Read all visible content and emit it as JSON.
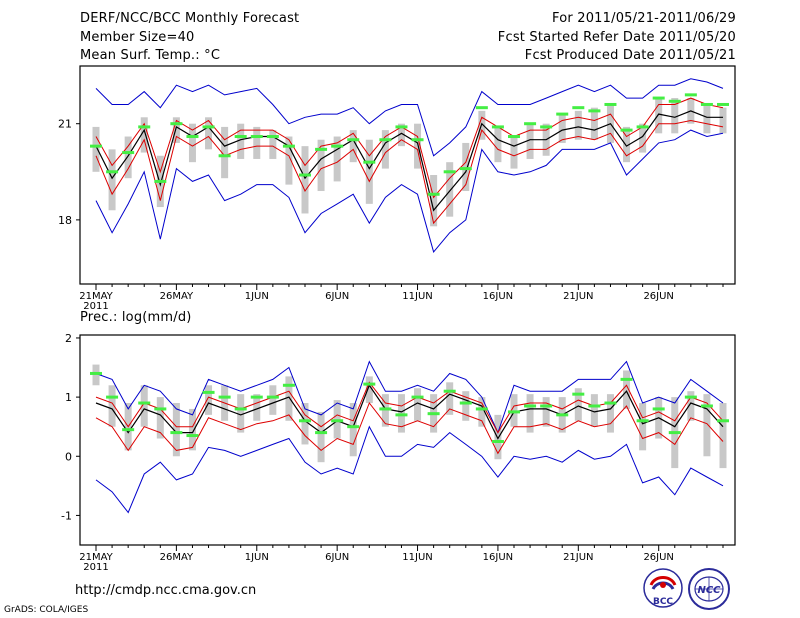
{
  "header": {
    "title": "DERF/NCC/BCC Monthly Forecast",
    "member_size": "Member Size=40",
    "period": "For 2011/05/21-2011/06/29",
    "fcst_started": "Fcst Started Refer Date 2011/05/20",
    "fcst_produced": "Fcst Produced Date 2011/05/21"
  },
  "footer": {
    "url": "http://cmdp.ncc.cma.gov.cn",
    "credit": "GrADS: COLA/IGES",
    "logo_bcc_text": "BCC",
    "logo_ncc_text": "NCC"
  },
  "colors": {
    "ensemble_mean": "#000000",
    "spread_lines": "#dd0000",
    "extreme_lines": "#0000cc",
    "box": "#c8c8c8",
    "median_marker": "#44ee44"
  },
  "chart_data": [
    {
      "type": "line",
      "title": "Mean Surf. Temp.: °C",
      "x_tick_labels": [
        "21MAY",
        "26MAY",
        "1JUN",
        "6JUN",
        "11JUN",
        "16JUN",
        "21JUN",
        "26JUN"
      ],
      "year_label": "2011",
      "ylim": [
        16,
        22.8
      ],
      "y_ticks": [
        18,
        21
      ],
      "days": 40,
      "series": [
        {
          "name": "mean",
          "values": [
            20.3,
            19.3,
            20.0,
            20.8,
            19.1,
            20.9,
            20.6,
            20.9,
            20.3,
            20.5,
            20.6,
            20.6,
            20.3,
            19.3,
            19.9,
            20.2,
            20.5,
            19.6,
            20.4,
            20.7,
            20.4,
            18.3,
            18.9,
            19.5,
            21.0,
            20.5,
            20.3,
            20.5,
            20.5,
            20.8,
            20.9,
            20.8,
            21.0,
            20.3,
            20.6,
            21.3,
            21.2,
            21.4,
            21.2,
            21.2
          ]
        },
        {
          "name": "upper",
          "values": [
            20.6,
            19.7,
            20.3,
            21.0,
            19.5,
            21.1,
            20.8,
            21.1,
            20.5,
            20.8,
            20.8,
            20.8,
            20.5,
            19.7,
            20.3,
            20.4,
            20.7,
            20.0,
            20.6,
            20.9,
            20.6,
            18.7,
            19.3,
            19.8,
            21.2,
            20.9,
            20.6,
            20.8,
            20.8,
            21.1,
            21.2,
            21.1,
            21.3,
            20.6,
            20.9,
            21.6,
            21.6,
            21.8,
            21.6,
            21.5
          ]
        },
        {
          "name": "lower",
          "values": [
            20.0,
            18.8,
            19.6,
            20.5,
            18.6,
            20.6,
            20.3,
            20.6,
            20.0,
            20.2,
            20.3,
            20.3,
            20.0,
            18.9,
            19.6,
            19.8,
            20.2,
            19.2,
            20.1,
            20.5,
            20.2,
            17.9,
            18.5,
            19.1,
            20.8,
            20.2,
            20.0,
            20.2,
            20.2,
            20.5,
            20.6,
            20.5,
            20.7,
            20.0,
            20.3,
            21.0,
            21.0,
            21.1,
            21.0,
            20.9
          ]
        },
        {
          "name": "max",
          "values": [
            22.1,
            21.6,
            21.6,
            22.0,
            21.5,
            22.2,
            22.0,
            22.2,
            21.9,
            22.0,
            22.1,
            21.6,
            21.0,
            21.2,
            21.3,
            21.3,
            21.5,
            21.0,
            21.4,
            21.6,
            21.6,
            20.0,
            20.4,
            20.9,
            22.0,
            21.6,
            21.6,
            21.6,
            21.8,
            22.0,
            22.2,
            22.0,
            22.2,
            21.8,
            21.8,
            22.2,
            22.2,
            22.4,
            22.3,
            22.1
          ]
        },
        {
          "name": "min",
          "values": [
            18.6,
            17.6,
            18.5,
            19.5,
            17.4,
            19.6,
            19.2,
            19.4,
            18.6,
            18.8,
            19.1,
            19.1,
            18.7,
            17.6,
            18.2,
            18.5,
            18.8,
            17.9,
            18.7,
            19.1,
            18.8,
            17.0,
            17.6,
            18.0,
            20.2,
            19.5,
            19.4,
            19.5,
            19.7,
            20.2,
            20.2,
            20.2,
            20.4,
            19.4,
            19.9,
            20.4,
            20.5,
            20.8,
            20.6,
            20.7
          ]
        },
        {
          "name": "box_top",
          "values": [
            20.9,
            20.2,
            20.6,
            21.2,
            20.0,
            21.2,
            21.0,
            21.2,
            20.9,
            21.0,
            20.9,
            20.8,
            20.6,
            20.3,
            20.5,
            20.6,
            20.8,
            20.5,
            20.8,
            21.0,
            21.0,
            19.4,
            19.8,
            20.4,
            21.4,
            20.9,
            20.6,
            21.0,
            21.0,
            21.3,
            21.4,
            21.5,
            21.6,
            20.9,
            21.0,
            21.8,
            21.8,
            21.8,
            21.6,
            21.5
          ]
        },
        {
          "name": "box_bottom",
          "values": [
            19.5,
            18.3,
            19.3,
            20.1,
            18.4,
            20.4,
            19.8,
            20.2,
            19.3,
            19.9,
            19.9,
            19.9,
            19.1,
            18.2,
            18.9,
            19.2,
            19.8,
            18.5,
            19.6,
            20.3,
            19.6,
            17.8,
            18.1,
            18.9,
            20.5,
            19.8,
            19.6,
            19.9,
            20.0,
            20.4,
            20.5,
            20.5,
            20.4,
            19.8,
            20.1,
            20.7,
            20.7,
            21.0,
            20.7,
            20.7
          ]
        },
        {
          "name": "median",
          "values": [
            20.3,
            19.5,
            20.1,
            20.9,
            19.2,
            21.0,
            20.6,
            20.9,
            20.0,
            20.6,
            20.6,
            20.6,
            20.3,
            19.4,
            20.2,
            20.3,
            20.5,
            19.8,
            20.5,
            20.9,
            20.5,
            18.8,
            19.5,
            19.6,
            21.5,
            20.9,
            20.6,
            21.0,
            20.9,
            21.3,
            21.5,
            21.4,
            21.6,
            20.8,
            20.9,
            21.8,
            21.7,
            21.9,
            21.6,
            21.6
          ]
        }
      ]
    },
    {
      "type": "line",
      "title": "Prec.: log(mm/d)",
      "x_tick_labels": [
        "21MAY",
        "26MAY",
        "1JUN",
        "6JUN",
        "11JUN",
        "16JUN",
        "21JUN",
        "26JUN"
      ],
      "year_label": "2011",
      "ylim": [
        -1.5,
        2.05
      ],
      "y_ticks": [
        -1,
        0,
        1,
        2
      ],
      "days": 40,
      "series": [
        {
          "name": "mean",
          "values": [
            0.9,
            0.8,
            0.4,
            0.8,
            0.7,
            0.4,
            0.4,
            0.9,
            0.8,
            0.7,
            0.8,
            0.9,
            1.0,
            0.6,
            0.4,
            0.6,
            0.5,
            1.2,
            0.8,
            0.75,
            0.9,
            0.8,
            1.05,
            0.95,
            0.85,
            0.3,
            0.75,
            0.8,
            0.8,
            0.7,
            0.85,
            0.75,
            0.8,
            1.1,
            0.55,
            0.65,
            0.5,
            0.9,
            0.8,
            0.5
          ]
        },
        {
          "name": "upper",
          "values": [
            1.0,
            0.9,
            0.5,
            0.9,
            0.8,
            0.5,
            0.5,
            1.0,
            0.9,
            0.8,
            0.9,
            1.0,
            1.1,
            0.7,
            0.5,
            0.7,
            0.6,
            1.25,
            0.9,
            0.85,
            1.0,
            0.9,
            1.1,
            1.0,
            0.9,
            0.4,
            0.85,
            0.9,
            0.9,
            0.8,
            0.95,
            0.85,
            0.9,
            1.2,
            0.65,
            0.75,
            0.6,
            1.0,
            0.9,
            0.6
          ]
        },
        {
          "name": "lower",
          "values": [
            0.65,
            0.5,
            0.1,
            0.5,
            0.4,
            0.1,
            0.15,
            0.65,
            0.55,
            0.45,
            0.55,
            0.6,
            0.7,
            0.35,
            0.1,
            0.3,
            0.2,
            0.9,
            0.55,
            0.5,
            0.6,
            0.5,
            0.8,
            0.7,
            0.6,
            0.05,
            0.5,
            0.5,
            0.55,
            0.45,
            0.6,
            0.5,
            0.55,
            0.85,
            0.3,
            0.4,
            0.2,
            0.65,
            0.55,
            0.25
          ]
        },
        {
          "name": "max",
          "values": [
            1.4,
            1.3,
            0.8,
            1.2,
            1.1,
            0.8,
            0.7,
            1.3,
            1.2,
            1.1,
            1.2,
            1.3,
            1.5,
            0.8,
            0.7,
            0.9,
            0.8,
            1.6,
            1.1,
            1.1,
            1.2,
            1.1,
            1.4,
            1.3,
            1.0,
            0.4,
            1.2,
            1.1,
            1.1,
            1.1,
            1.3,
            1.3,
            1.3,
            1.6,
            0.9,
            1.0,
            0.9,
            1.3,
            1.1,
            0.9
          ]
        },
        {
          "name": "min",
          "values": [
            -0.4,
            -0.6,
            -0.95,
            -0.3,
            -0.1,
            -0.4,
            -0.3,
            0.15,
            0.1,
            0.0,
            0.1,
            0.2,
            0.3,
            -0.1,
            -0.3,
            -0.2,
            -0.3,
            0.5,
            0.0,
            0.0,
            0.2,
            0.15,
            0.4,
            0.2,
            0.0,
            -0.35,
            0.0,
            -0.05,
            0.0,
            -0.1,
            0.1,
            -0.05,
            0.0,
            0.2,
            -0.45,
            -0.35,
            -0.65,
            -0.2,
            -0.35,
            -0.5
          ]
        },
        {
          "name": "box_top",
          "values": [
            1.55,
            1.2,
            0.9,
            1.2,
            1.0,
            0.9,
            0.8,
            1.2,
            1.2,
            1.05,
            1.05,
            1.2,
            1.35,
            0.9,
            0.75,
            0.95,
            0.9,
            1.35,
            1.05,
            1.05,
            1.15,
            1.05,
            1.25,
            1.1,
            1.0,
            0.7,
            1.05,
            1.05,
            1.0,
            1.0,
            1.15,
            1.05,
            1.05,
            1.45,
            0.9,
            1.0,
            1.0,
            1.1,
            1.05,
            0.9
          ]
        },
        {
          "name": "box_bottom",
          "values": [
            1.2,
            0.5,
            0.1,
            0.5,
            0.3,
            0.0,
            0.1,
            0.7,
            0.6,
            0.4,
            0.6,
            0.7,
            0.6,
            0.2,
            -0.1,
            0.3,
            0.0,
            0.9,
            0.5,
            0.4,
            0.6,
            0.4,
            0.7,
            0.6,
            0.5,
            -0.05,
            0.5,
            0.4,
            0.5,
            0.4,
            0.6,
            0.5,
            0.4,
            0.8,
            0.1,
            0.3,
            -0.2,
            0.6,
            0.0,
            -0.2
          ]
        },
        {
          "name": "median",
          "values": [
            1.4,
            1.0,
            0.45,
            0.9,
            0.8,
            0.4,
            0.35,
            1.08,
            1.0,
            0.8,
            1.0,
            1.0,
            1.2,
            0.6,
            0.4,
            0.6,
            0.5,
            1.22,
            0.8,
            0.7,
            1.0,
            0.72,
            1.1,
            0.9,
            0.8,
            0.25,
            0.75,
            0.85,
            0.85,
            0.7,
            1.05,
            0.85,
            0.9,
            1.3,
            0.6,
            0.8,
            0.4,
            1.0,
            0.85,
            0.6
          ]
        }
      ]
    }
  ]
}
